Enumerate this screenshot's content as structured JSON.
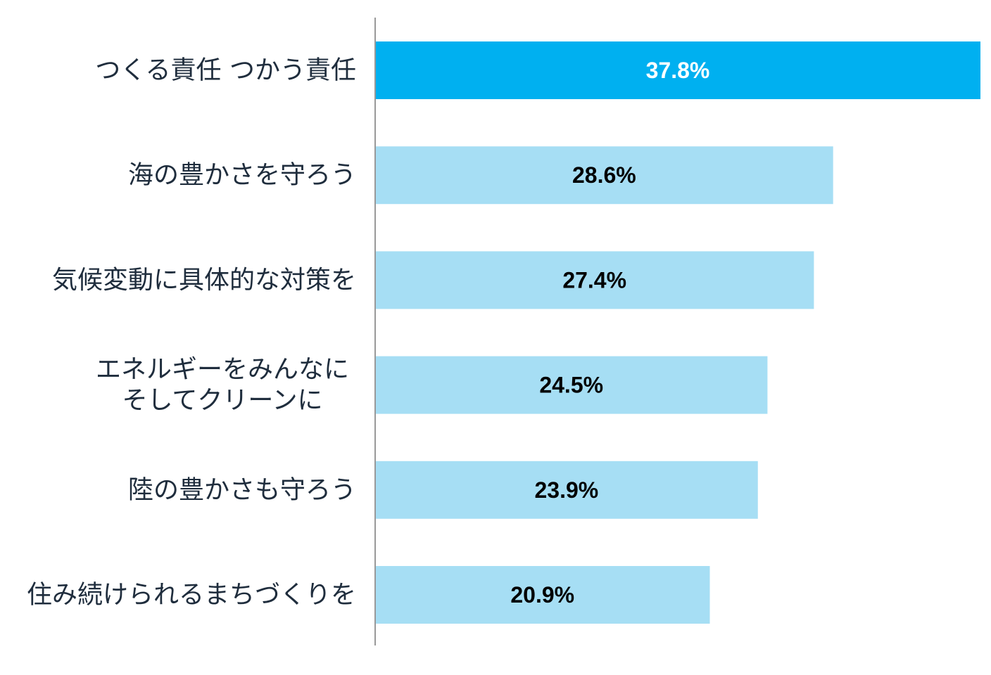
{
  "chart_data": {
    "type": "bar",
    "orientation": "horizontal",
    "categories": [
      [
        "つくる責任 つかう責任"
      ],
      [
        "海の豊かさを守ろう"
      ],
      [
        "気候変動に具体的な対策を"
      ],
      [
        "エネルギーをみんなに",
        "そしてクリーンに"
      ],
      [
        "陸の豊かさも守ろう"
      ],
      [
        "住み続けられるまちづくりを"
      ]
    ],
    "values": [
      37.8,
      28.6,
      27.4,
      24.5,
      23.9,
      20.9
    ],
    "value_labels": [
      "37.8%",
      "28.6%",
      "27.4%",
      "24.5%",
      "23.9%",
      "20.9%"
    ],
    "unit": "%",
    "xlim": [
      0,
      37.8
    ],
    "grid": false,
    "legend": "none",
    "colors": {
      "highlight_bar": "#00b0f0",
      "bar": "#a6def4",
      "highlight_label": "#ffffff",
      "label": "#000000",
      "axis": "#999999"
    },
    "highlight_index": 0
  }
}
